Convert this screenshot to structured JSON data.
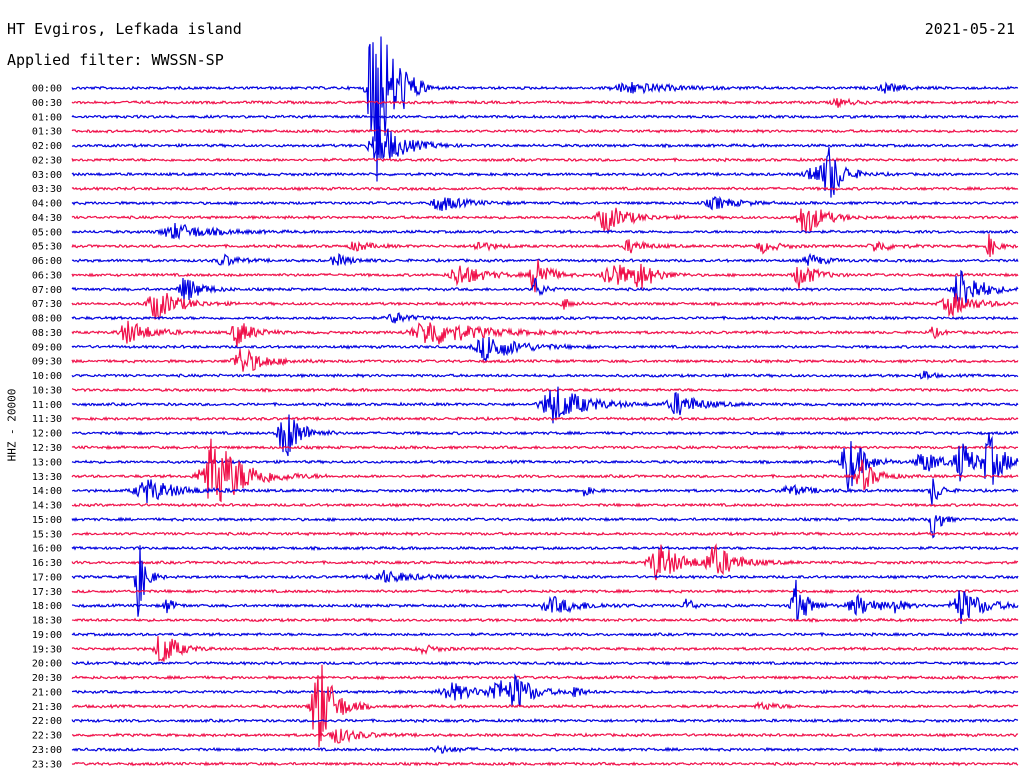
{
  "header": {
    "station": "HT Evgiros, Lefkada island",
    "filter": "Applied filter: WWSSN-SP",
    "date": "2021-05-21",
    "channel": "HHZ - 20000"
  },
  "trace_colors": [
    "#0000e0",
    "#f0104a"
  ],
  "rows": [
    "00:00",
    "00:30",
    "01:00",
    "01:30",
    "02:00",
    "02:30",
    "03:00",
    "03:30",
    "04:00",
    "04:30",
    "05:00",
    "05:30",
    "06:00",
    "06:30",
    "07:00",
    "07:30",
    "08:00",
    "08:30",
    "09:00",
    "09:30",
    "10:00",
    "10:30",
    "11:00",
    "11:30",
    "12:00",
    "12:30",
    "13:00",
    "13:30",
    "14:00",
    "14:30",
    "15:00",
    "15:30",
    "16:00",
    "16:30",
    "17:00",
    "17:30",
    "18:00",
    "18:30",
    "19:00",
    "19:30",
    "20:00",
    "20:30",
    "21:00",
    "21:30",
    "22:00",
    "22:30",
    "23:00",
    "23:30"
  ],
  "events": [
    {
      "row": 0,
      "at": 0.32,
      "amp": 120,
      "dur": 0.02
    },
    {
      "row": 0,
      "at": 0.35,
      "amp": 8,
      "dur": 0.02
    },
    {
      "row": 0,
      "at": 0.59,
      "amp": 6,
      "dur": 0.05
    },
    {
      "row": 0,
      "at": 0.86,
      "amp": 5,
      "dur": 0.02
    },
    {
      "row": 1,
      "at": 0.81,
      "amp": 4,
      "dur": 0.02
    },
    {
      "row": 4,
      "at": 0.325,
      "amp": 25,
      "dur": 0.03
    },
    {
      "row": 6,
      "at": 0.785,
      "amp": 10,
      "dur": 0.03
    },
    {
      "row": 6,
      "at": 0.8,
      "amp": 28,
      "dur": 0.015
    },
    {
      "row": 8,
      "at": 0.39,
      "amp": 8,
      "dur": 0.03
    },
    {
      "row": 8,
      "at": 0.68,
      "amp": 6,
      "dur": 0.03
    },
    {
      "row": 9,
      "at": 0.565,
      "amp": 14,
      "dur": 0.03
    },
    {
      "row": 9,
      "at": 0.775,
      "amp": 18,
      "dur": 0.025
    },
    {
      "row": 10,
      "at": 0.11,
      "amp": 8,
      "dur": 0.045
    },
    {
      "row": 11,
      "at": 0.3,
      "amp": 5,
      "dur": 0.02
    },
    {
      "row": 11,
      "at": 0.43,
      "amp": 5,
      "dur": 0.02
    },
    {
      "row": 11,
      "at": 0.59,
      "amp": 7,
      "dur": 0.02
    },
    {
      "row": 11,
      "at": 0.73,
      "amp": 6,
      "dur": 0.02
    },
    {
      "row": 11,
      "at": 0.85,
      "amp": 6,
      "dur": 0.02
    },
    {
      "row": 11,
      "at": 0.97,
      "amp": 12,
      "dur": 0.01
    },
    {
      "row": 12,
      "at": 0.16,
      "amp": 6,
      "dur": 0.02
    },
    {
      "row": 12,
      "at": 0.28,
      "amp": 6,
      "dur": 0.02
    },
    {
      "row": 12,
      "at": 0.78,
      "amp": 6,
      "dur": 0.02
    },
    {
      "row": 13,
      "at": 0.41,
      "amp": 12,
      "dur": 0.03
    },
    {
      "row": 13,
      "at": 0.49,
      "amp": 26,
      "dur": 0.015
    },
    {
      "row": 13,
      "at": 0.57,
      "amp": 14,
      "dur": 0.03
    },
    {
      "row": 13,
      "at": 0.6,
      "amp": 12,
      "dur": 0.02
    },
    {
      "row": 13,
      "at": 0.77,
      "amp": 14,
      "dur": 0.02
    },
    {
      "row": 14,
      "at": 0.12,
      "amp": 14,
      "dur": 0.02
    },
    {
      "row": 14,
      "at": 0.49,
      "amp": 12,
      "dur": 0.01
    },
    {
      "row": 14,
      "at": 0.94,
      "amp": 24,
      "dur": 0.025
    },
    {
      "row": 15,
      "at": 0.09,
      "amp": 16,
      "dur": 0.03
    },
    {
      "row": 15,
      "at": 0.52,
      "amp": 6,
      "dur": 0.01
    },
    {
      "row": 15,
      "at": 0.93,
      "amp": 12,
      "dur": 0.03
    },
    {
      "row": 16,
      "at": 0.34,
      "amp": 6,
      "dur": 0.02
    },
    {
      "row": 17,
      "at": 0.06,
      "amp": 12,
      "dur": 0.03
    },
    {
      "row": 17,
      "at": 0.175,
      "amp": 14,
      "dur": 0.02
    },
    {
      "row": 17,
      "at": 0.38,
      "amp": 14,
      "dur": 0.06
    },
    {
      "row": 17,
      "at": 0.91,
      "amp": 6,
      "dur": 0.01
    },
    {
      "row": 18,
      "at": 0.44,
      "amp": 14,
      "dur": 0.04
    },
    {
      "row": 19,
      "at": 0.18,
      "amp": 14,
      "dur": 0.03
    },
    {
      "row": 20,
      "at": 0.9,
      "amp": 6,
      "dur": 0.01
    },
    {
      "row": 22,
      "at": 0.51,
      "amp": 20,
      "dur": 0.04
    },
    {
      "row": 22,
      "at": 0.64,
      "amp": 12,
      "dur": 0.03
    },
    {
      "row": 24,
      "at": 0.225,
      "amp": 30,
      "dur": 0.02
    },
    {
      "row": 26,
      "at": 0.82,
      "amp": 32,
      "dur": 0.02
    },
    {
      "row": 26,
      "at": 0.9,
      "amp": 12,
      "dur": 0.025
    },
    {
      "row": 26,
      "at": 0.94,
      "amp": 20,
      "dur": 0.02
    },
    {
      "row": 26,
      "at": 0.97,
      "amp": 26,
      "dur": 0.02
    },
    {
      "row": 27,
      "at": 0.15,
      "amp": 40,
      "dur": 0.04
    },
    {
      "row": 27,
      "at": 0.835,
      "amp": 16,
      "dur": 0.02
    },
    {
      "row": 28,
      "at": 0.08,
      "amp": 12,
      "dur": 0.04
    },
    {
      "row": 28,
      "at": 0.54,
      "amp": 6,
      "dur": 0.01
    },
    {
      "row": 28,
      "at": 0.76,
      "amp": 5,
      "dur": 0.03
    },
    {
      "row": 28,
      "at": 0.91,
      "amp": 16,
      "dur": 0.01
    },
    {
      "row": 30,
      "at": 0.91,
      "amp": 20,
      "dur": 0.01
    },
    {
      "row": 33,
      "at": 0.62,
      "amp": 20,
      "dur": 0.03
    },
    {
      "row": 33,
      "at": 0.68,
      "amp": 16,
      "dur": 0.03
    },
    {
      "row": 34,
      "at": 0.07,
      "amp": 40,
      "dur": 0.01
    },
    {
      "row": 34,
      "at": 0.33,
      "amp": 6,
      "dur": 0.04
    },
    {
      "row": 36,
      "at": 0.1,
      "amp": 8,
      "dur": 0.01
    },
    {
      "row": 36,
      "at": 0.51,
      "amp": 8,
      "dur": 0.04
    },
    {
      "row": 36,
      "at": 0.65,
      "amp": 8,
      "dur": 0.01
    },
    {
      "row": 36,
      "at": 0.765,
      "amp": 26,
      "dur": 0.015
    },
    {
      "row": 36,
      "at": 0.83,
      "amp": 10,
      "dur": 0.03
    },
    {
      "row": 36,
      "at": 0.87,
      "amp": 8,
      "dur": 0.01
    },
    {
      "row": 36,
      "at": 0.94,
      "amp": 18,
      "dur": 0.03
    },
    {
      "row": 39,
      "at": 0.095,
      "amp": 20,
      "dur": 0.02
    },
    {
      "row": 39,
      "at": 0.37,
      "amp": 4,
      "dur": 0.02
    },
    {
      "row": 42,
      "at": 0.4,
      "amp": 10,
      "dur": 0.03
    },
    {
      "row": 42,
      "at": 0.45,
      "amp": 12,
      "dur": 0.03
    },
    {
      "row": 42,
      "at": 0.47,
      "amp": 14,
      "dur": 0.02
    },
    {
      "row": 42,
      "at": 0.53,
      "amp": 8,
      "dur": 0.01
    },
    {
      "row": 43,
      "at": 0.26,
      "amp": 56,
      "dur": 0.02
    },
    {
      "row": 43,
      "at": 0.73,
      "amp": 4,
      "dur": 0.02
    },
    {
      "row": 45,
      "at": 0.28,
      "amp": 8,
      "dur": 0.03
    },
    {
      "row": 46,
      "at": 0.39,
      "amp": 3,
      "dur": 0.03
    }
  ]
}
